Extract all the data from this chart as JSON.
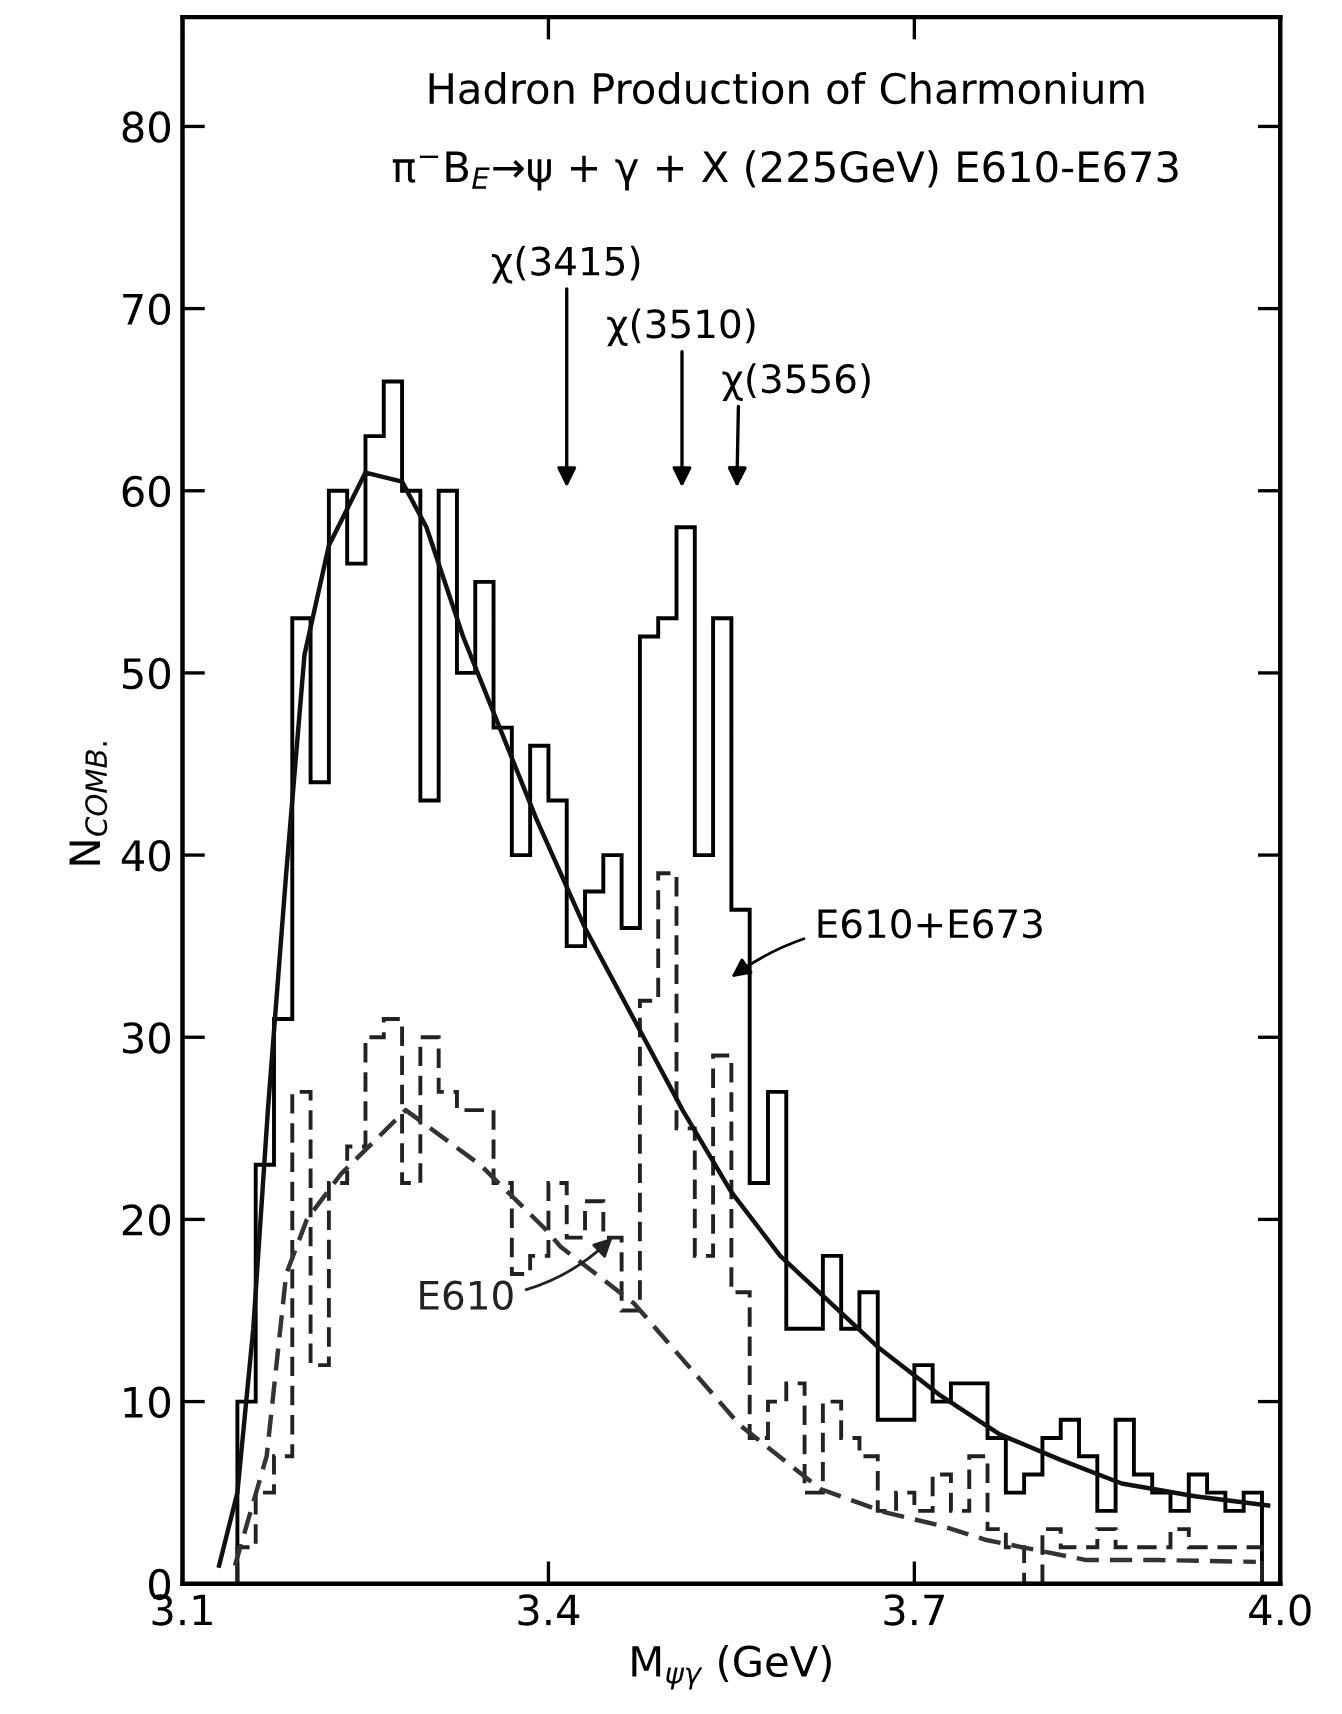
{
  "chart_data": {
    "type": "histogram",
    "title": "Hadron Production of Charmonium",
    "subtitle": "π$^{−}$B$_{E}$→ψ + γ + X (225GeV) E610-E673",
    "xlabel": "M$_{ψγ}$ (GeV)",
    "ylabel": "N$_{COMB.}$",
    "bins": [
      3.145,
      3.16,
      3.175,
      3.19,
      3.205,
      3.22,
      3.235,
      3.25,
      3.265,
      3.28,
      3.295,
      3.31,
      3.325,
      3.34,
      3.355,
      3.37,
      3.385,
      3.4,
      3.415,
      3.43,
      3.445,
      3.46,
      3.475,
      3.49,
      3.505,
      3.52,
      3.535,
      3.55,
      3.565,
      3.58,
      3.595,
      3.61,
      3.625,
      3.64,
      3.655,
      3.67,
      3.685,
      3.7,
      3.715,
      3.73,
      3.745,
      3.76,
      3.775,
      3.79,
      3.805,
      3.82,
      3.835,
      3.85,
      3.865,
      3.88,
      3.895,
      3.91,
      3.925,
      3.94,
      3.955,
      3.97,
      3.985
    ],
    "series": [
      {
        "type": "histogram",
        "name": "E610+E673",
        "color": "#000000",
        "line_style": "solid",
        "values": [
          10,
          23,
          31,
          53,
          44,
          60,
          56,
          63,
          66,
          60,
          43,
          60,
          50,
          55,
          47,
          40,
          46,
          43,
          35,
          38,
          40,
          36,
          52,
          53,
          58,
          40,
          53,
          37,
          22,
          27,
          14,
          14,
          18,
          14,
          16,
          9,
          9,
          12,
          10,
          11,
          11,
          8,
          5,
          6,
          8,
          9,
          7,
          4,
          9,
          6,
          5,
          4,
          6,
          5,
          4,
          5
        ]
      },
      {
        "type": "histogram",
        "name": "E610",
        "color": "#222222",
        "line_style": "dashed",
        "values": [
          2,
          5,
          7,
          27,
          12,
          22,
          24,
          30,
          31,
          22,
          30,
          27,
          26,
          26,
          22,
          17,
          18,
          22,
          19,
          21,
          19,
          15,
          32,
          39,
          25,
          18,
          29,
          16,
          8,
          10,
          11,
          5,
          10,
          8,
          7,
          4,
          5,
          4,
          6,
          4,
          7,
          3,
          2,
          0,
          3,
          2,
          2,
          3,
          2,
          2,
          2,
          3,
          2,
          2,
          2,
          2
        ]
      },
      {
        "type": "line",
        "color": "#111111",
        "line_style": "solid",
        "x": [
          3.13,
          3.145,
          3.158,
          3.17,
          3.185,
          3.2,
          3.22,
          3.25,
          3.28,
          3.3,
          3.33,
          3.36,
          3.39,
          3.43,
          3.47,
          3.51,
          3.55,
          3.59,
          3.63,
          3.67,
          3.72,
          3.77,
          3.82,
          3.87,
          3.93,
          3.99
        ],
        "values": [
          1,
          5,
          14,
          26,
          39,
          51,
          57,
          61,
          60.5,
          58,
          52,
          47,
          42,
          36,
          31,
          26,
          21.5,
          18,
          15.5,
          13,
          10.4,
          8.2,
          6.8,
          5.5,
          4.8,
          4.3
        ]
      },
      {
        "type": "line",
        "color": "#333333",
        "line_style": "dashed",
        "x": [
          3.143,
          3.169,
          3.185,
          3.202,
          3.23,
          3.283,
          3.344,
          3.397,
          3.41,
          3.47,
          3.557,
          3.623,
          3.677,
          3.721,
          3.759,
          3.841,
          3.9,
          3.98
        ],
        "values": [
          1,
          7,
          17,
          20,
          22.5,
          26,
          23,
          19.5,
          18.5,
          15.4,
          8.7,
          5.2,
          3.9,
          3.2,
          2.4,
          1.3,
          1.3,
          1.2
        ]
      }
    ],
    "annotations": [
      "χ(3415)",
      "χ(3510)",
      "χ(3556)"
    ],
    "xlim": [
      3.1,
      4.0
    ],
    "xticks": [
      3.1,
      3.4,
      3.7,
      {
        "value": 4.0,
        "label": "4.0"
      }
    ],
    "ylim": [
      0,
      86
    ],
    "yticks": [
      0,
      10,
      20,
      30,
      40,
      50,
      60,
      70,
      80
    ],
    "grid": false,
    "legend": false
  }
}
